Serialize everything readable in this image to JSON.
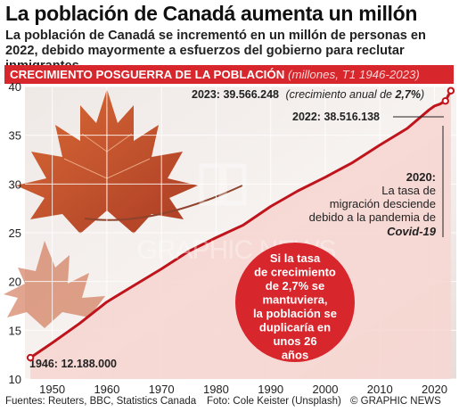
{
  "header": {
    "title": "La población de Canadá aumenta un millón",
    "subtitle": "La población de Canadá se incrementó en un millón de personas en 2022, debido mayormente a esfuerzos del gobierno para reclutar inmigrantes",
    "banner_main": "CRECIMIENTO POSGUERRA DE LA POBLACIÓN",
    "banner_paren": "(millones, T1 1946-2023)"
  },
  "annotations": {
    "a2023_label": "2023: 39.566.248",
    "a2023_paren_start": "(crecimiento anual de ",
    "a2023_paren_bold": "2,7%",
    "a2023_paren_end": ")",
    "a2022": "2022: 38.516.138",
    "a2020_year": "2020:",
    "a2020_line1": "La tasa de",
    "a2020_line2": "migración desciende",
    "a2020_line3": "debido a la pandemia de",
    "a2020_covid": "Covid-19",
    "a1946": "1946: 12.188.000",
    "bubble_lines": [
      "Si la tasa",
      "de crecimiento",
      "de 2,7% se",
      "mantuviera,",
      "la población se",
      "duplicaría en",
      "unos 26",
      "años"
    ],
    "watermark": "GRAPHIC NEWS"
  },
  "footer": {
    "sources": "Fuentes: Reuters, BBC, Statistics Canada",
    "photo": "Foto: Cole Keister (Unsplash)",
    "copyright": "© GRAPHIC NEWS"
  },
  "colors": {
    "accent": "#d8262d",
    "area_fill": "#f6d6d2",
    "line": "#c0141c",
    "leaf": "#c24a21"
  },
  "chart_data": {
    "type": "area",
    "title": "CRECIMIENTO POSGUERRA DE LA POBLACIÓN",
    "subtitle": "(millones, T1 1946-2023)",
    "xlim": [
      1945,
      2024
    ],
    "ylim": [
      10,
      40
    ],
    "x_ticks": [
      1950,
      1960,
      1970,
      1980,
      1990,
      2000,
      2010,
      2020
    ],
    "y_ticks": [
      10,
      15,
      20,
      25,
      30,
      35,
      40
    ],
    "grid": true,
    "series": [
      {
        "x": [
          1946,
          1950,
          1955,
          1960,
          1965,
          1970,
          1975,
          1980,
          1985,
          1990,
          1995,
          2000,
          2005,
          2010,
          2015,
          2019,
          2020,
          2021,
          2022,
          2023
        ],
        "values": [
          12.188,
          13.7,
          15.7,
          17.9,
          19.6,
          21.3,
          23.1,
          24.5,
          25.8,
          27.7,
          29.3,
          30.7,
          32.2,
          34.0,
          35.7,
          37.6,
          38.0,
          38.2,
          38.516,
          39.566
        ]
      }
    ],
    "highlight_points": [
      {
        "x": 1946,
        "y": 12.188
      },
      {
        "x": 2022,
        "y": 38.516
      },
      {
        "x": 2023,
        "y": 39.566
      }
    ]
  }
}
